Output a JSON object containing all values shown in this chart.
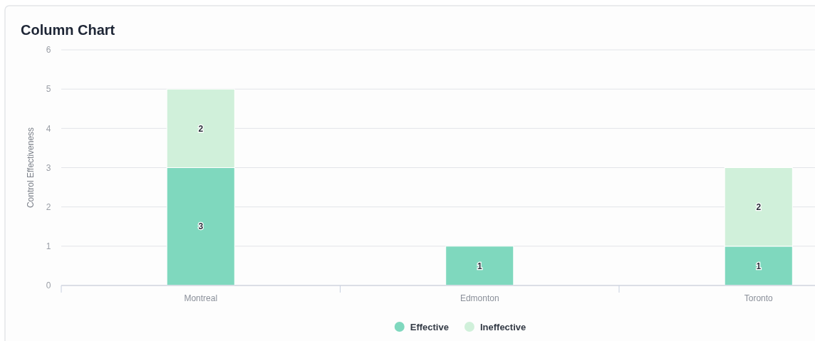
{
  "chart_data": {
    "type": "bar",
    "title": "Column Chart",
    "ylabel": "Control Effectiveness",
    "categories": [
      "Montreal",
      "Edmonton",
      "Toronto"
    ],
    "series": [
      {
        "name": "Effective",
        "color": "#7fd8be",
        "values": [
          3,
          1,
          1
        ]
      },
      {
        "name": "Ineffective",
        "color": "#d0f0da",
        "values": [
          2,
          null,
          2
        ]
      }
    ],
    "stacked": true,
    "ylim": [
      0,
      6
    ],
    "yticks": [
      0,
      1,
      2,
      3,
      4,
      5,
      6
    ],
    "grid": "y",
    "legend": "bottom",
    "data_labels": true
  }
}
